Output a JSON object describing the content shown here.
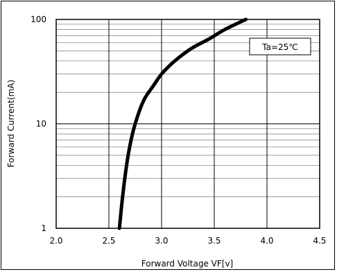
{
  "chart_data": {
    "type": "line",
    "title": "",
    "xlabel": "Forward Voltage VF[v]",
    "ylabel": "Forward Current(mA)",
    "xlim": [
      2.0,
      4.5
    ],
    "ylim": [
      1,
      100
    ],
    "yscale": "log",
    "grid": true,
    "x_ticks": [
      "2.0",
      "2.5",
      "3.0",
      "3.5",
      "4.0",
      "4.5"
    ],
    "y_ticks": [
      "1",
      "10",
      "100"
    ],
    "annotation": "Ta=25℃",
    "legend_position": "top-right",
    "series": [
      {
        "x": [
          2.6,
          2.63,
          2.66,
          2.69,
          2.73,
          2.78,
          2.84,
          2.92,
          3.0,
          3.1,
          3.2,
          3.3,
          3.45,
          3.6,
          3.8
        ],
        "y": [
          1,
          2,
          3.5,
          5.5,
          8.5,
          12.5,
          17.5,
          23,
          30,
          38,
          46,
          54,
          65,
          80,
          100
        ],
        "color": "#000000"
      }
    ]
  }
}
